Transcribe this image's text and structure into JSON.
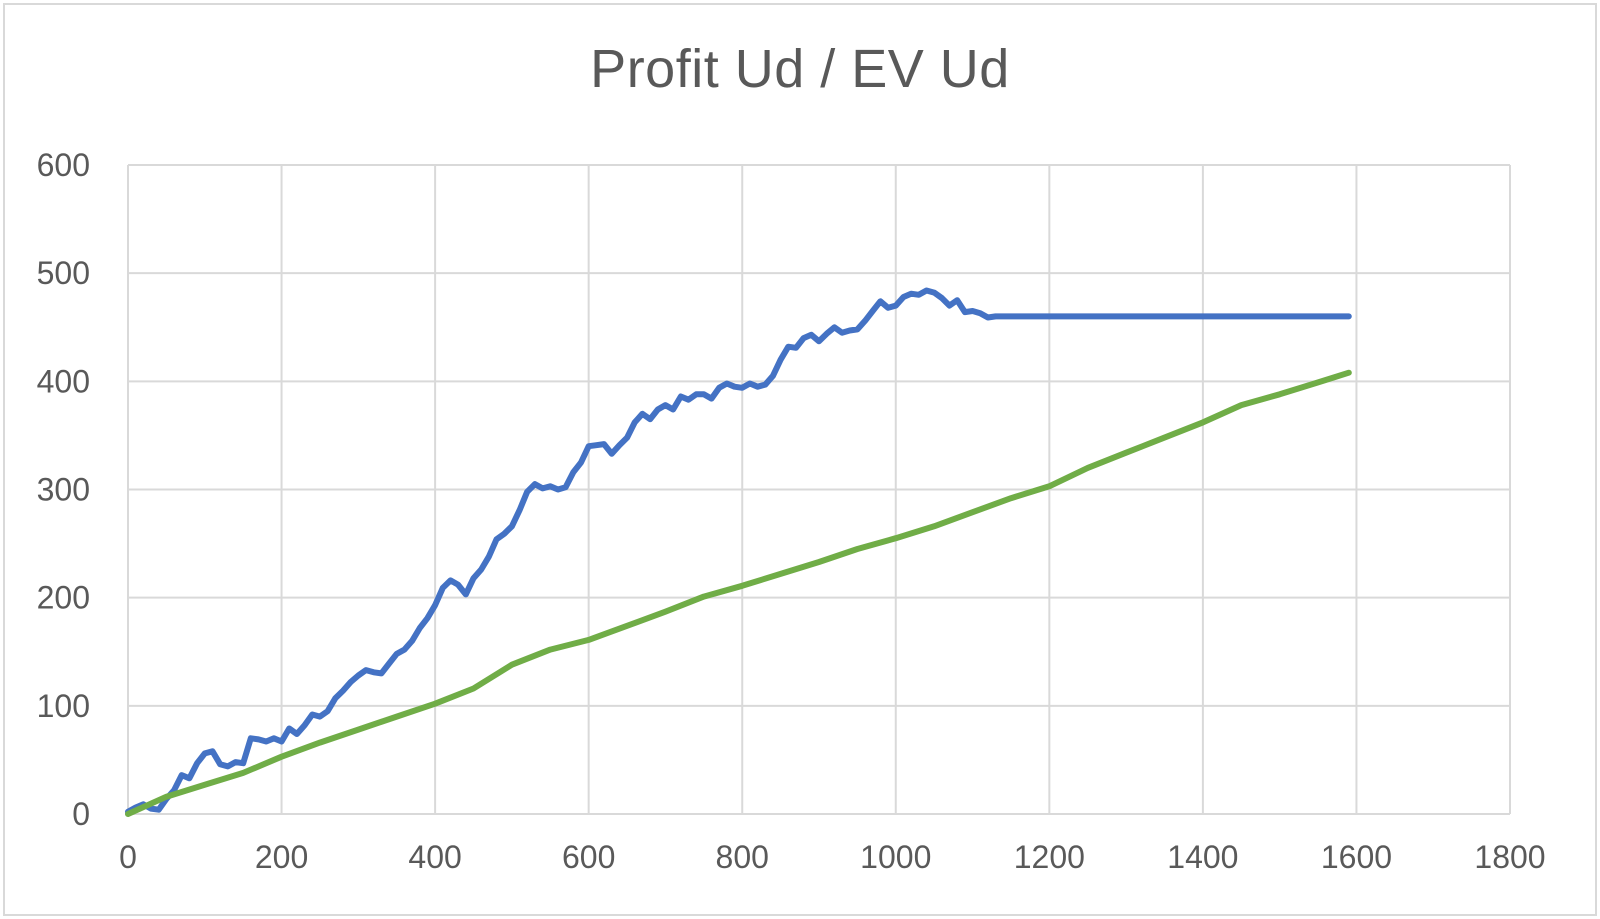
{
  "chart_data": {
    "type": "line",
    "title": "Profit Ud / EV Ud",
    "xlabel": "",
    "ylabel": "",
    "xlim": [
      0,
      1800
    ],
    "ylim": [
      0,
      600
    ],
    "x_ticks": [
      0,
      200,
      400,
      600,
      800,
      1000,
      1200,
      1400,
      1600,
      1800
    ],
    "y_ticks": [
      0,
      100,
      200,
      300,
      400,
      500,
      600
    ],
    "grid": true,
    "legend": "none",
    "colors": [
      "#4472c4",
      "#70ad47"
    ],
    "series": [
      {
        "x": [
          0,
          10,
          20,
          30,
          40,
          50,
          60,
          70,
          80,
          90,
          100,
          110,
          120,
          130,
          140,
          150,
          160,
          170,
          180,
          190,
          200,
          210,
          220,
          230,
          240,
          250,
          260,
          270,
          280,
          290,
          300,
          310,
          320,
          330,
          340,
          350,
          360,
          370,
          380,
          390,
          400,
          410,
          420,
          430,
          440,
          450,
          460,
          470,
          480,
          490,
          500,
          510,
          520,
          530,
          540,
          550,
          560,
          570,
          580,
          590,
          600,
          610,
          620,
          630,
          640,
          650,
          660,
          670,
          680,
          690,
          700,
          710,
          720,
          730,
          740,
          750,
          760,
          770,
          780,
          790,
          800,
          810,
          820,
          830,
          840,
          850,
          860,
          870,
          880,
          890,
          900,
          910,
          920,
          930,
          940,
          950,
          960,
          970,
          980,
          990,
          1000,
          1010,
          1020,
          1030,
          1040,
          1050,
          1060,
          1070,
          1080,
          1090,
          1100,
          1110,
          1120,
          1130,
          1140,
          1150,
          1160,
          1170,
          1180,
          1190,
          1200,
          1210,
          1220,
          1230,
          1240,
          1250,
          1260,
          1270,
          1280,
          1290,
          1300,
          1310,
          1320,
          1330,
          1340,
          1350,
          1360,
          1370,
          1380,
          1390,
          1400,
          1410,
          1420,
          1430,
          1440,
          1450,
          1460,
          1470,
          1480,
          1490,
          1500,
          1510,
          1520,
          1530,
          1540,
          1550,
          1560,
          1570,
          1580,
          1590
        ],
        "values": [
          2,
          6,
          9,
          5,
          4,
          14,
          22,
          36,
          33,
          47,
          56,
          58,
          46,
          44,
          48,
          47,
          70,
          69,
          67,
          70,
          67,
          79,
          74,
          82,
          92,
          90,
          95,
          107,
          114,
          122,
          128,
          133,
          131,
          130,
          139,
          148,
          152,
          160,
          172,
          181,
          193,
          209,
          216,
          212,
          203,
          218,
          226,
          238,
          254,
          259,
          266,
          281,
          298,
          305,
          301,
          303,
          300,
          302,
          316,
          325,
          340,
          341,
          342,
          333,
          341,
          348,
          362,
          370,
          365,
          374,
          378,
          374,
          386,
          383,
          388,
          388,
          384,
          394,
          398,
          395,
          394,
          398,
          395,
          397,
          405,
          420,
          432,
          431,
          440,
          443,
          437,
          444,
          450,
          445,
          447,
          448,
          456,
          465,
          474,
          468,
          470,
          478,
          481,
          480,
          484,
          482,
          477,
          470,
          475,
          464,
          465,
          463,
          459,
          460,
          460,
          460,
          460,
          460,
          460,
          460,
          460,
          460,
          460,
          460,
          460,
          460,
          460,
          460,
          460,
          460,
          460,
          460,
          460,
          460,
          460,
          460,
          460,
          460,
          460,
          460,
          460,
          460,
          460,
          460,
          460,
          460,
          460,
          460,
          460,
          460,
          460,
          460,
          460,
          460,
          460,
          460,
          460,
          460,
          460,
          460
        ]
      },
      {
        "x": [
          0,
          50,
          100,
          150,
          200,
          250,
          300,
          350,
          400,
          450,
          500,
          550,
          600,
          650,
          700,
          750,
          800,
          850,
          900,
          950,
          1000,
          1050,
          1100,
          1150,
          1200,
          1250,
          1300,
          1350,
          1400,
          1450,
          1500,
          1550,
          1590
        ],
        "values": [
          0,
          16,
          27,
          38,
          53,
          66,
          78,
          90,
          102,
          116,
          138,
          152,
          161,
          174,
          187,
          201,
          211,
          222,
          233,
          245,
          255,
          266,
          279,
          292,
          303,
          320,
          334,
          348,
          362,
          378,
          388,
          399,
          408
        ]
      }
    ]
  }
}
